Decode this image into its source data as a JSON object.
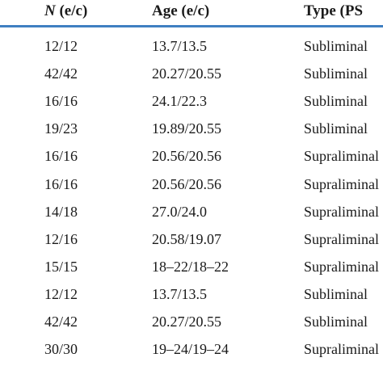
{
  "table": {
    "headers": {
      "n_label": "N",
      "n_suffix": " (e/c)",
      "age": "Age (e/c)",
      "type": "Type (PS"
    },
    "rows": [
      {
        "n": "12/12",
        "age": "13.7/13.5",
        "type": "Subliminal"
      },
      {
        "n": "42/42",
        "age": "20.27/20.55",
        "type": "Subliminal"
      },
      {
        "n": "16/16",
        "age": "24.1/22.3",
        "type": "Subliminal"
      },
      {
        "n": "19/23",
        "age": "19.89/20.55",
        "type": "Subliminal"
      },
      {
        "n": "16/16",
        "age": "20.56/20.56",
        "type": "Supraliminal"
      },
      {
        "n": "16/16",
        "age": "20.56/20.56",
        "type": "Supraliminal"
      },
      {
        "n": "14/18",
        "age": "27.0/24.0",
        "type": "Supraliminal"
      },
      {
        "n": "12/16",
        "age": "20.58/19.07",
        "type": "Supraliminal"
      },
      {
        "n": "15/15",
        "age": "18–22/18–22",
        "type": "Supraliminal"
      },
      {
        "n": "12/12",
        "age": "13.7/13.5",
        "type": "Subliminal"
      },
      {
        "n": "42/42",
        "age": "20.27/20.55",
        "type": "Subliminal"
      },
      {
        "n": "30/30",
        "age": "19–24/19–24",
        "type": "Supraliminal"
      }
    ]
  },
  "colors": {
    "rule": "#3f7fc1",
    "text": "#1a1a1a"
  }
}
